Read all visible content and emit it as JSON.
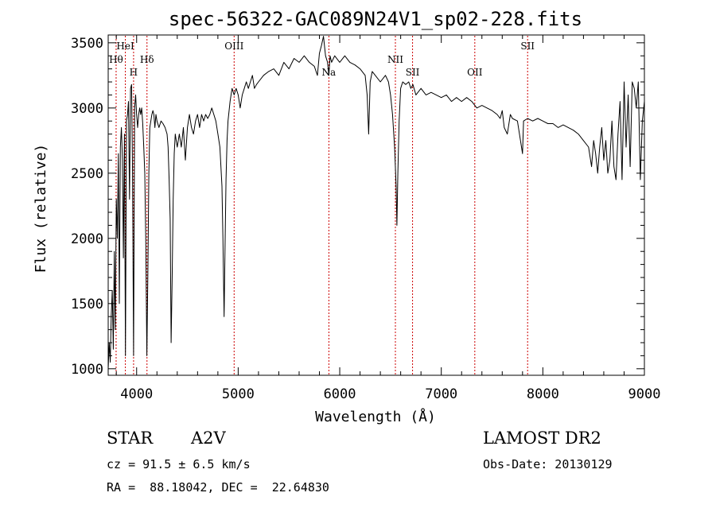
{
  "chart_data": {
    "type": "line",
    "title": "spec-56322-GAC089N24V1_sp02-228.fits",
    "xlabel": "Wavelength (Å)",
    "ylabel": "Flux (relative)",
    "xlim": [
      3720,
      9000
    ],
    "ylim": [
      950,
      3560
    ],
    "xticks": [
      4000,
      5000,
      6000,
      7000,
      8000,
      9000
    ],
    "yticks": [
      1000,
      1500,
      2000,
      2500,
      3000,
      3500
    ],
    "xtick_labels": [
      "4000",
      "5000",
      "6000",
      "7000",
      "8000",
      "9000"
    ],
    "ytick_labels": [
      "1000",
      "1500",
      "2000",
      "2500",
      "3000",
      "3500"
    ],
    "grid": false,
    "series": [
      {
        "color": "#000000",
        "points": [
          [
            3720,
            1000
          ],
          [
            3730,
            1200
          ],
          [
            3740,
            1050
          ],
          [
            3750,
            1400
          ],
          [
            3760,
            1600
          ],
          [
            3770,
            1150
          ],
          [
            3780,
            1900
          ],
          [
            3790,
            1300
          ],
          [
            3800,
            2300
          ],
          [
            3810,
            2000
          ],
          [
            3820,
            2650
          ],
          [
            3830,
            1500
          ],
          [
            3840,
            2700
          ],
          [
            3850,
            2850
          ],
          [
            3860,
            2600
          ],
          [
            3870,
            1850
          ],
          [
            3880,
            2800
          ],
          [
            3890,
            1100
          ],
          [
            3900,
            2900
          ],
          [
            3910,
            2950
          ],
          [
            3920,
            3050
          ],
          [
            3930,
            2300
          ],
          [
            3940,
            3150
          ],
          [
            3950,
            3180
          ],
          [
            3960,
            2500
          ],
          [
            3970,
            1100
          ],
          [
            3980,
            3000
          ],
          [
            3990,
            3100
          ],
          [
            4000,
            2950
          ],
          [
            4010,
            2850
          ],
          [
            4020,
            2950
          ],
          [
            4030,
            3000
          ],
          [
            4040,
            2950
          ],
          [
            4050,
            3000
          ],
          [
            4060,
            2880
          ],
          [
            4070,
            2700
          ],
          [
            4080,
            2500
          ],
          [
            4090,
            2000
          ],
          [
            4101,
            1100
          ],
          [
            4110,
            1700
          ],
          [
            4120,
            2500
          ],
          [
            4130,
            2850
          ],
          [
            4140,
            2900
          ],
          [
            4150,
            2950
          ],
          [
            4160,
            2980
          ],
          [
            4170,
            2950
          ],
          [
            4180,
            2850
          ],
          [
            4190,
            2950
          ],
          [
            4200,
            2900
          ],
          [
            4220,
            2850
          ],
          [
            4240,
            2900
          ],
          [
            4260,
            2880
          ],
          [
            4280,
            2850
          ],
          [
            4300,
            2800
          ],
          [
            4310,
            2700
          ],
          [
            4320,
            2450
          ],
          [
            4330,
            2150
          ],
          [
            4340,
            1200
          ],
          [
            4350,
            1700
          ],
          [
            4360,
            2300
          ],
          [
            4370,
            2650
          ],
          [
            4380,
            2800
          ],
          [
            4390,
            2750
          ],
          [
            4400,
            2700
          ],
          [
            4420,
            2800
          ],
          [
            4440,
            2700
          ],
          [
            4460,
            2850
          ],
          [
            4480,
            2600
          ],
          [
            4500,
            2850
          ],
          [
            4520,
            2950
          ],
          [
            4540,
            2850
          ],
          [
            4560,
            2800
          ],
          [
            4580,
            2900
          ],
          [
            4600,
            2950
          ],
          [
            4620,
            2850
          ],
          [
            4640,
            2950
          ],
          [
            4660,
            2900
          ],
          [
            4680,
            2950
          ],
          [
            4700,
            2920
          ],
          [
            4720,
            2950
          ],
          [
            4740,
            3000
          ],
          [
            4760,
            2950
          ],
          [
            4780,
            2900
          ],
          [
            4800,
            2800
          ],
          [
            4820,
            2700
          ],
          [
            4840,
            2400
          ],
          [
            4850,
            2000
          ],
          [
            4861,
            1400
          ],
          [
            4870,
            1900
          ],
          [
            4880,
            2450
          ],
          [
            4890,
            2750
          ],
          [
            4900,
            2900
          ],
          [
            4920,
            3050
          ],
          [
            4940,
            3150
          ],
          [
            4960,
            3100
          ],
          [
            4980,
            3150
          ],
          [
            5000,
            3100
          ],
          [
            5020,
            3000
          ],
          [
            5040,
            3100
          ],
          [
            5060,
            3150
          ],
          [
            5080,
            3200
          ],
          [
            5100,
            3150
          ],
          [
            5120,
            3200
          ],
          [
            5140,
            3250
          ],
          [
            5160,
            3150
          ],
          [
            5180,
            3180
          ],
          [
            5200,
            3200
          ],
          [
            5250,
            3250
          ],
          [
            5300,
            3280
          ],
          [
            5350,
            3300
          ],
          [
            5400,
            3250
          ],
          [
            5450,
            3350
          ],
          [
            5500,
            3300
          ],
          [
            5550,
            3380
          ],
          [
            5600,
            3350
          ],
          [
            5650,
            3400
          ],
          [
            5700,
            3350
          ],
          [
            5750,
            3320
          ],
          [
            5780,
            3250
          ],
          [
            5800,
            3420
          ],
          [
            5820,
            3480
          ],
          [
            5840,
            3550
          ],
          [
            5860,
            3400
          ],
          [
            5880,
            3350
          ],
          [
            5893,
            3250
          ],
          [
            5905,
            3400
          ],
          [
            5920,
            3350
          ],
          [
            5950,
            3400
          ],
          [
            6000,
            3350
          ],
          [
            6050,
            3400
          ],
          [
            6100,
            3350
          ],
          [
            6150,
            3330
          ],
          [
            6200,
            3300
          ],
          [
            6250,
            3250
          ],
          [
            6270,
            3100
          ],
          [
            6285,
            2800
          ],
          [
            6300,
            3200
          ],
          [
            6320,
            3280
          ],
          [
            6350,
            3250
          ],
          [
            6400,
            3200
          ],
          [
            6450,
            3250
          ],
          [
            6480,
            3200
          ],
          [
            6500,
            3100
          ],
          [
            6520,
            2950
          ],
          [
            6540,
            2700
          ],
          [
            6555,
            2400
          ],
          [
            6563,
            2100
          ],
          [
            6572,
            2500
          ],
          [
            6585,
            2900
          ],
          [
            6600,
            3150
          ],
          [
            6620,
            3200
          ],
          [
            6650,
            3180
          ],
          [
            6680,
            3200
          ],
          [
            6700,
            3150
          ],
          [
            6720,
            3180
          ],
          [
            6750,
            3100
          ],
          [
            6800,
            3150
          ],
          [
            6850,
            3100
          ],
          [
            6900,
            3120
          ],
          [
            6950,
            3100
          ],
          [
            7000,
            3080
          ],
          [
            7050,
            3100
          ],
          [
            7100,
            3050
          ],
          [
            7150,
            3080
          ],
          [
            7200,
            3050
          ],
          [
            7250,
            3080
          ],
          [
            7300,
            3050
          ],
          [
            7350,
            3000
          ],
          [
            7400,
            3020
          ],
          [
            7450,
            3000
          ],
          [
            7500,
            2980
          ],
          [
            7550,
            2950
          ],
          [
            7580,
            2920
          ],
          [
            7600,
            2980
          ],
          [
            7620,
            2850
          ],
          [
            7650,
            2800
          ],
          [
            7680,
            2950
          ],
          [
            7700,
            2920
          ],
          [
            7750,
            2900
          ],
          [
            7800,
            2650
          ],
          [
            7810,
            2900
          ],
          [
            7850,
            2920
          ],
          [
            7900,
            2900
          ],
          [
            7950,
            2920
          ],
          [
            8000,
            2900
          ],
          [
            8050,
            2880
          ],
          [
            8100,
            2880
          ],
          [
            8150,
            2850
          ],
          [
            8200,
            2870
          ],
          [
            8250,
            2850
          ],
          [
            8300,
            2830
          ],
          [
            8350,
            2800
          ],
          [
            8400,
            2750
          ],
          [
            8450,
            2700
          ],
          [
            8480,
            2550
          ],
          [
            8500,
            2750
          ],
          [
            8520,
            2650
          ],
          [
            8540,
            2500
          ],
          [
            8560,
            2700
          ],
          [
            8580,
            2850
          ],
          [
            8600,
            2600
          ],
          [
            8620,
            2750
          ],
          [
            8640,
            2500
          ],
          [
            8660,
            2600
          ],
          [
            8680,
            2900
          ],
          [
            8700,
            2550
          ],
          [
            8720,
            2450
          ],
          [
            8740,
            2800
          ],
          [
            8760,
            3050
          ],
          [
            8780,
            2450
          ],
          [
            8800,
            3200
          ],
          [
            8820,
            2700
          ],
          [
            8840,
            3100
          ],
          [
            8860,
            2550
          ],
          [
            8880,
            3200
          ],
          [
            8900,
            3150
          ],
          [
            8920,
            3000
          ],
          [
            8940,
            3200
          ],
          [
            8960,
            2450
          ],
          [
            8980,
            2900
          ],
          [
            9000,
            3050
          ]
        ]
      }
    ],
    "line_markers": [
      {
        "label": "Hθ",
        "x": 3798,
        "row": 1
      },
      {
        "label": "HeI",
        "x": 3889,
        "row": 0
      },
      {
        "label": "H",
        "x": 3970,
        "row": 2
      },
      {
        "label": "Hδ",
        "x": 4102,
        "row": 1
      },
      {
        "label": "OIII",
        "x": 4960,
        "row": 0
      },
      {
        "label": "Na",
        "x": 5893,
        "row": 2
      },
      {
        "label": "NII",
        "x": 6548,
        "row": 1
      },
      {
        "label": "SII",
        "x": 6717,
        "row": 2
      },
      {
        "label": "OII",
        "x": 7330,
        "row": 2
      },
      {
        "label": "SII",
        "x": 7850,
        "row": 0
      }
    ],
    "marker_color": "#cc0000"
  },
  "info": {
    "obj_class": "STAR",
    "subclass": "A2V",
    "survey": "LAMOST DR2",
    "cz": "cz = 91.5 ± 6.5 km/s",
    "obs_date": "Obs-Date: 20130129",
    "coords": "RA =  88.18042, DEC =  22.64830"
  }
}
